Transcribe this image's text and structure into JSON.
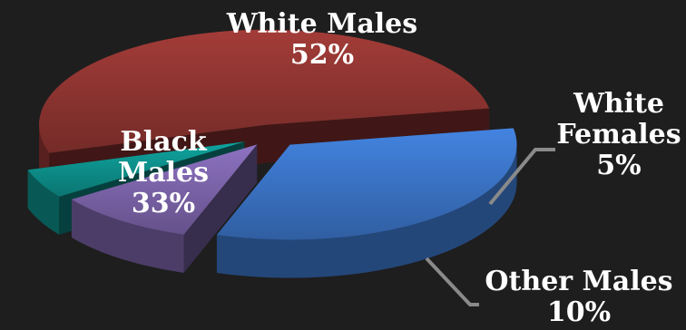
{
  "chart_data": {
    "type": "pie",
    "title": "",
    "slices": [
      {
        "name_lines": [
          "White Males"
        ],
        "value": 52,
        "value_label": "52%",
        "color": "#8e3431"
      },
      {
        "name_lines": [
          "White",
          "Females"
        ],
        "value": 5,
        "value_label": "5%",
        "color": "#0d8f8a"
      },
      {
        "name_lines": [
          "Other Males"
        ],
        "value": 10,
        "value_label": "10%",
        "color": "#7b63a8"
      },
      {
        "name_lines": [
          "Black",
          "Males"
        ],
        "value": 33,
        "value_label": "33%",
        "color": "#3a73c4"
      }
    ],
    "background_color": "#1e1e1e",
    "leader_line_color": "#8a8a8a",
    "style": "3d-exploded"
  }
}
